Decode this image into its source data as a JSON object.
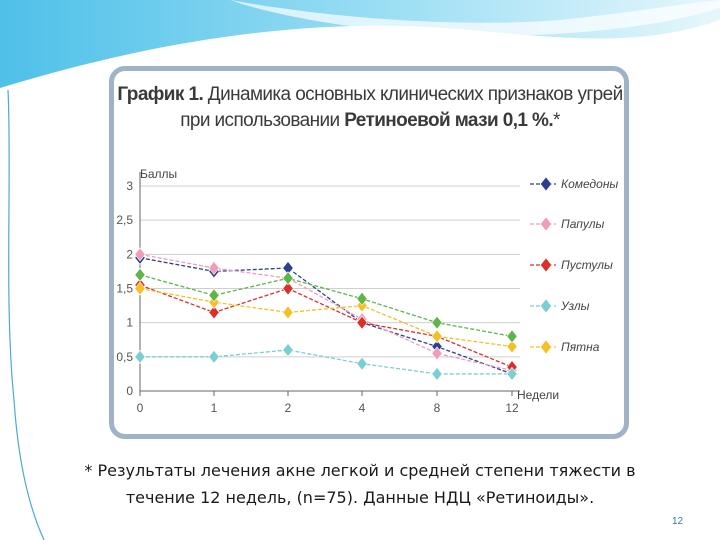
{
  "slide": {
    "footnote_line1": "* Результаты лечения акне легкой и средней степени тяжести в",
    "footnote_line2": "течение 12 недель, (n=75). Данные НДЦ «Ретиноиды».",
    "page_number": "12"
  },
  "chart_data": {
    "type": "line",
    "title_prefix": "График 1.",
    "title_rest": " Динамика основных клинических признаков угрей",
    "title_line2_pre": "при использовании ",
    "title_line2_bold": "Ретиноевой мази 0,1 %.",
    "title_line2_post": "*",
    "ylabel": "Баллы",
    "xlabel": "Недели",
    "x": [
      "0",
      "1",
      "2",
      "4",
      "8",
      "12"
    ],
    "ylim": [
      0,
      3
    ],
    "yticks": [
      "0",
      "0,5",
      "1",
      "1,5",
      "2",
      "2,5",
      "3"
    ],
    "ytick_values": [
      0,
      0.5,
      1,
      1.5,
      2,
      2.5,
      3
    ],
    "grid": true,
    "legend_position": "right",
    "series": [
      {
        "name": "Комедоны",
        "color": "#2b3f8c",
        "values": [
          1.95,
          1.75,
          1.8,
          1.0,
          0.65,
          0.25
        ]
      },
      {
        "name": "Папулы",
        "color": "#f29cbc",
        "values": [
          2.0,
          1.8,
          1.65,
          1.05,
          0.55,
          0.3
        ]
      },
      {
        "name": "Пустулы",
        "color": "#d9302a",
        "values": [
          1.55,
          1.15,
          1.5,
          1.0,
          0.8,
          0.35
        ]
      },
      {
        "name": "Узлы",
        "color": "#7ccfd0",
        "values": [
          0.5,
          0.5,
          0.6,
          0.4,
          0.25,
          0.25
        ]
      },
      {
        "name": "Пятна",
        "color": "#f5c025",
        "values": [
          1.5,
          1.3,
          1.15,
          1.25,
          0.8,
          0.65
        ]
      },
      {
        "name": "",
        "color": "#5fb54a",
        "values": [
          1.7,
          1.4,
          1.65,
          1.35,
          1.0,
          0.8
        ]
      }
    ]
  }
}
